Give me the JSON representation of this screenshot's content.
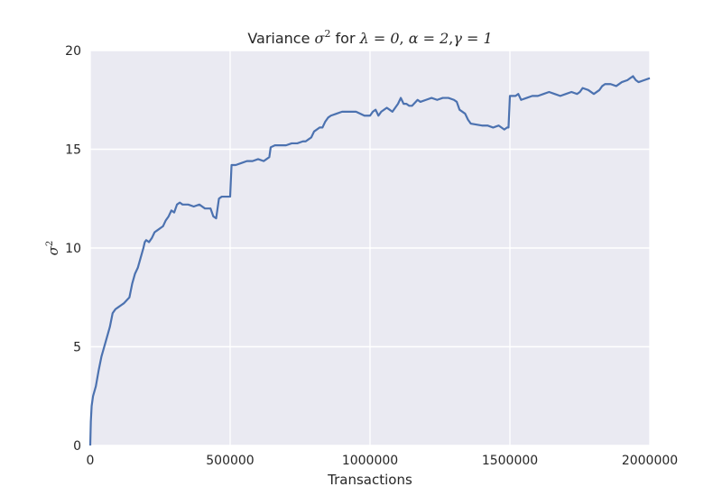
{
  "chart_data": {
    "type": "line",
    "title": {
      "prefix": "Variance ",
      "sigma": "σ",
      "sup": "2",
      "mid": " for ",
      "lambda_expr": "λ = 0",
      "sep1": ", ",
      "alpha_expr": "α = 2",
      "sep2": ",",
      "gamma_expr": "γ = 1"
    },
    "xlabel": "Transactions",
    "ylabel": {
      "symbol": "σ",
      "sup": "2"
    },
    "xlim": [
      0,
      2000000
    ],
    "ylim": [
      0,
      20
    ],
    "xticks": [
      0,
      500000,
      1000000,
      1500000,
      2000000
    ],
    "yticks": [
      0,
      5,
      10,
      15,
      20
    ],
    "xtick_labels": [
      "0",
      "500000",
      "1000000",
      "1500000",
      "2000000"
    ],
    "ytick_labels": [
      "0",
      "5",
      "10",
      "15",
      "20"
    ],
    "grid": true,
    "style": {
      "background": "#eaeaf2",
      "grid_color": "#ffffff",
      "line_color": "#4c72b0"
    },
    "series": [
      {
        "x": [
          0,
          2000,
          5000,
          10000,
          20000,
          30000,
          40000,
          50000,
          60000,
          70000,
          80000,
          90000,
          100000,
          110000,
          120000,
          140000,
          150000,
          160000,
          170000,
          180000,
          190000,
          195000,
          200000,
          210000,
          220000,
          230000,
          240000,
          260000,
          270000,
          280000,
          290000,
          300000,
          310000,
          320000,
          330000,
          350000,
          370000,
          390000,
          410000,
          430000,
          440000,
          450000,
          455000,
          460000,
          470000,
          490000,
          500000,
          505000,
          520000,
          540000,
          560000,
          580000,
          600000,
          620000,
          630000,
          640000,
          645000,
          660000,
          680000,
          700000,
          720000,
          740000,
          760000,
          770000,
          780000,
          790000,
          800000,
          820000,
          830000,
          840000,
          850000,
          860000,
          880000,
          900000,
          950000,
          980000,
          1000000,
          1010000,
          1020000,
          1030000,
          1040000,
          1060000,
          1070000,
          1080000,
          1090000,
          1100000,
          1110000,
          1120000,
          1130000,
          1140000,
          1150000,
          1170000,
          1180000,
          1200000,
          1220000,
          1240000,
          1260000,
          1280000,
          1300000,
          1310000,
          1320000,
          1340000,
          1350000,
          1360000,
          1400000,
          1420000,
          1440000,
          1460000,
          1480000,
          1490000,
          1495000,
          1500000,
          1520000,
          1530000,
          1540000,
          1560000,
          1580000,
          1600000,
          1620000,
          1640000,
          1660000,
          1680000,
          1700000,
          1720000,
          1740000,
          1750000,
          1760000,
          1780000,
          1800000,
          1820000,
          1830000,
          1840000,
          1860000,
          1880000,
          1900000,
          1920000,
          1930000,
          1940000,
          1950000,
          1960000,
          1980000,
          2000000
        ],
        "y": [
          0,
          1.2,
          2.0,
          2.5,
          3.0,
          3.8,
          4.5,
          5.0,
          5.5,
          6.0,
          6.7,
          6.9,
          7.0,
          7.1,
          7.2,
          7.5,
          8.2,
          8.7,
          9.0,
          9.5,
          10.0,
          10.3,
          10.4,
          10.3,
          10.5,
          10.8,
          10.9,
          11.1,
          11.4,
          11.6,
          11.9,
          11.8,
          12.2,
          12.3,
          12.2,
          12.2,
          12.1,
          12.2,
          12.0,
          12.0,
          11.6,
          11.5,
          12.0,
          12.5,
          12.6,
          12.6,
          12.6,
          14.2,
          14.2,
          14.3,
          14.4,
          14.4,
          14.5,
          14.4,
          14.5,
          14.6,
          15.1,
          15.2,
          15.2,
          15.2,
          15.3,
          15.3,
          15.4,
          15.4,
          15.5,
          15.6,
          15.9,
          16.1,
          16.1,
          16.4,
          16.6,
          16.7,
          16.8,
          16.9,
          16.9,
          16.7,
          16.7,
          16.9,
          17.0,
          16.7,
          16.9,
          17.1,
          17.0,
          16.9,
          17.1,
          17.3,
          17.6,
          17.3,
          17.3,
          17.2,
          17.2,
          17.5,
          17.4,
          17.5,
          17.6,
          17.5,
          17.6,
          17.6,
          17.5,
          17.4,
          17.0,
          16.8,
          16.5,
          16.3,
          16.2,
          16.2,
          16.1,
          16.2,
          16.0,
          16.1,
          16.1,
          17.7,
          17.7,
          17.8,
          17.5,
          17.6,
          17.7,
          17.7,
          17.8,
          17.9,
          17.8,
          17.7,
          17.8,
          17.9,
          17.8,
          17.9,
          18.1,
          18.0,
          17.8,
          18.0,
          18.2,
          18.3,
          18.3,
          18.2,
          18.4,
          18.5,
          18.6,
          18.7,
          18.5,
          18.4,
          18.5,
          18.6
        ]
      }
    ]
  }
}
